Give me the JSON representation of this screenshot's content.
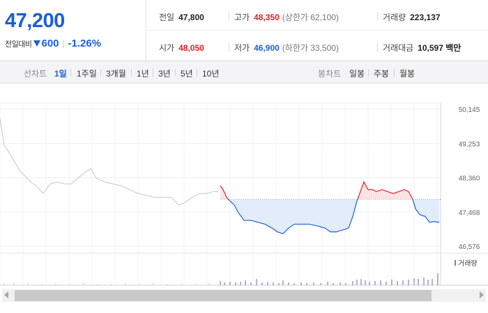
{
  "quote": {
    "price": "47,200",
    "change_label": "전일대비",
    "change_amount": "600",
    "change_rate": "-1.26%"
  },
  "stats": {
    "prev_label": "전일",
    "prev_value": "47,800",
    "high_label": "고가",
    "high_value": "48,350",
    "upper_limit": "(상한가 62,100)",
    "volume_label": "거래량",
    "volume_value": "223,137",
    "open_label": "시가",
    "open_value": "48,050",
    "low_label": "저가",
    "low_value": "46,900",
    "lower_limit": "(하한가 33,500)",
    "amount_label": "거래대금",
    "amount_value": "10,597 백만"
  },
  "line_periods": {
    "title": "선차트",
    "items": [
      "1일",
      "1주일",
      "3개월",
      "1년",
      "3년",
      "5년",
      "10년"
    ],
    "active": "1일"
  },
  "candle_periods": {
    "title": "봉차트",
    "items": [
      "일봉",
      "주봉",
      "월봉"
    ]
  },
  "colors": {
    "up": "#e0202a",
    "down": "#1a5fd6",
    "prev_period": "#c6c6c6"
  },
  "chart_data": {
    "type": "line",
    "y_ticks": [
      "50,145",
      "49,253",
      "48,360",
      "47,468",
      "46,576"
    ],
    "ylim": [
      46576,
      50145
    ],
    "reference_value": 47800,
    "volume_legend": "거래량",
    "prev_series": [
      [
        0,
        49900
      ],
      [
        6,
        49200
      ],
      [
        12,
        49050
      ],
      [
        20,
        48800
      ],
      [
        28,
        48550
      ],
      [
        36,
        48400
      ],
      [
        44,
        48250
      ],
      [
        52,
        48150
      ],
      [
        62,
        47950
      ],
      [
        72,
        48200
      ],
      [
        82,
        48250
      ],
      [
        92,
        48200
      ],
      [
        102,
        48200
      ],
      [
        112,
        48350
      ],
      [
        122,
        48500
      ],
      [
        130,
        48600
      ],
      [
        138,
        48350
      ],
      [
        150,
        48250
      ],
      [
        162,
        48200
      ],
      [
        174,
        48150
      ],
      [
        186,
        48050
      ],
      [
        198,
        47950
      ],
      [
        210,
        47900
      ],
      [
        222,
        47850
      ],
      [
        234,
        47850
      ],
      [
        246,
        47850
      ],
      [
        256,
        47650
      ],
      [
        264,
        47700
      ],
      [
        276,
        47850
      ],
      [
        286,
        47950
      ],
      [
        296,
        47950
      ],
      [
        306,
        48000
      ],
      [
        313,
        48000
      ]
    ],
    "today_series": [
      [
        316,
        48150
      ],
      [
        320,
        48050
      ],
      [
        325,
        47850
      ],
      [
        330,
        47750
      ],
      [
        336,
        47650
      ],
      [
        342,
        47450
      ],
      [
        350,
        47250
      ],
      [
        360,
        47250
      ],
      [
        370,
        47200
      ],
      [
        380,
        47150
      ],
      [
        390,
        47050
      ],
      [
        398,
        46950
      ],
      [
        406,
        46900
      ],
      [
        414,
        47050
      ],
      [
        422,
        47150
      ],
      [
        432,
        47150
      ],
      [
        444,
        47150
      ],
      [
        456,
        47100
      ],
      [
        466,
        47050
      ],
      [
        474,
        46950
      ],
      [
        482,
        46950
      ],
      [
        492,
        47000
      ],
      [
        500,
        47050
      ],
      [
        506,
        47350
      ],
      [
        512,
        47750
      ],
      [
        518,
        48050
      ],
      [
        522,
        48250
      ],
      [
        528,
        48050
      ],
      [
        534,
        48050
      ],
      [
        540,
        48000
      ],
      [
        548,
        48050
      ],
      [
        556,
        48000
      ],
      [
        564,
        47950
      ],
      [
        572,
        48000
      ],
      [
        580,
        48050
      ],
      [
        586,
        48000
      ],
      [
        592,
        47800
      ],
      [
        596,
        47550
      ],
      [
        602,
        47400
      ],
      [
        610,
        47350
      ],
      [
        616,
        47200
      ],
      [
        622,
        47220
      ],
      [
        630,
        47200
      ]
    ],
    "prev_volume": [
      [
        6,
        3
      ],
      [
        20,
        4
      ],
      [
        40,
        3
      ],
      [
        60,
        2
      ],
      [
        80,
        3
      ],
      [
        100,
        2
      ],
      [
        120,
        3
      ],
      [
        140,
        2
      ],
      [
        160,
        2
      ],
      [
        180,
        3
      ],
      [
        200,
        2
      ],
      [
        220,
        3
      ],
      [
        240,
        2
      ],
      [
        260,
        2
      ],
      [
        280,
        2
      ],
      [
        300,
        3
      ]
    ],
    "today_volume": [
      [
        316,
        6
      ],
      [
        322,
        4
      ],
      [
        330,
        5
      ],
      [
        338,
        4
      ],
      [
        345,
        5
      ],
      [
        352,
        7
      ],
      [
        360,
        4
      ],
      [
        368,
        9
      ],
      [
        376,
        4
      ],
      [
        384,
        5
      ],
      [
        392,
        4
      ],
      [
        400,
        3
      ],
      [
        406,
        7
      ],
      [
        414,
        4
      ],
      [
        422,
        3
      ],
      [
        432,
        4
      ],
      [
        440,
        3
      ],
      [
        450,
        4
      ],
      [
        460,
        3
      ],
      [
        470,
        5
      ],
      [
        478,
        3
      ],
      [
        488,
        4
      ],
      [
        496,
        3
      ],
      [
        506,
        6
      ],
      [
        512,
        8
      ],
      [
        518,
        9
      ],
      [
        524,
        7
      ],
      [
        530,
        5
      ],
      [
        538,
        6
      ],
      [
        546,
        7
      ],
      [
        554,
        5
      ],
      [
        562,
        8
      ],
      [
        570,
        6
      ],
      [
        578,
        7
      ],
      [
        586,
        8
      ],
      [
        594,
        10
      ],
      [
        600,
        9
      ],
      [
        608,
        11
      ],
      [
        614,
        8
      ],
      [
        620,
        9
      ],
      [
        628,
        17
      ]
    ]
  }
}
